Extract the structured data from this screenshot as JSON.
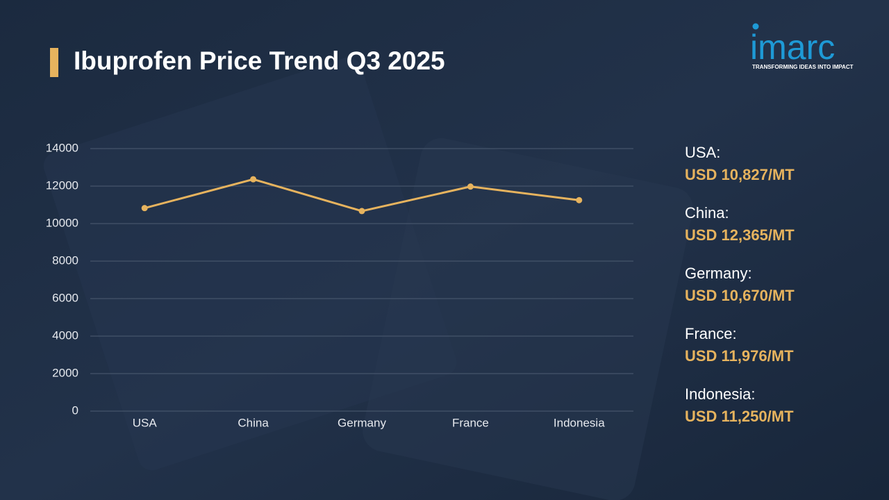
{
  "chart_data": {
    "type": "line",
    "title": "Ibuprofen Price Trend Q3 2025",
    "categories": [
      "USA",
      "China",
      "Germany",
      "France",
      "Indonesia"
    ],
    "values": [
      10827,
      12365,
      10670,
      11976,
      11250
    ],
    "value_labels": [
      "USD 10,827/MT",
      "USD 12,365/MT",
      "USD 10,670/MT",
      "USD 11,976/MT",
      "USD 11,250/MT"
    ],
    "side_labels": [
      "USA:",
      "China:",
      "Germany:",
      "France:",
      "Indonesia:"
    ],
    "color": "#e6b35e",
    "ylim": [
      0,
      14000
    ],
    "yticks": [
      0,
      2000,
      4000,
      6000,
      8000,
      10000,
      12000,
      14000
    ],
    "grid": true
  },
  "logo": {
    "name": "imarc",
    "tagline": "TRANSFORMING IDEAS INTO IMPACT"
  }
}
